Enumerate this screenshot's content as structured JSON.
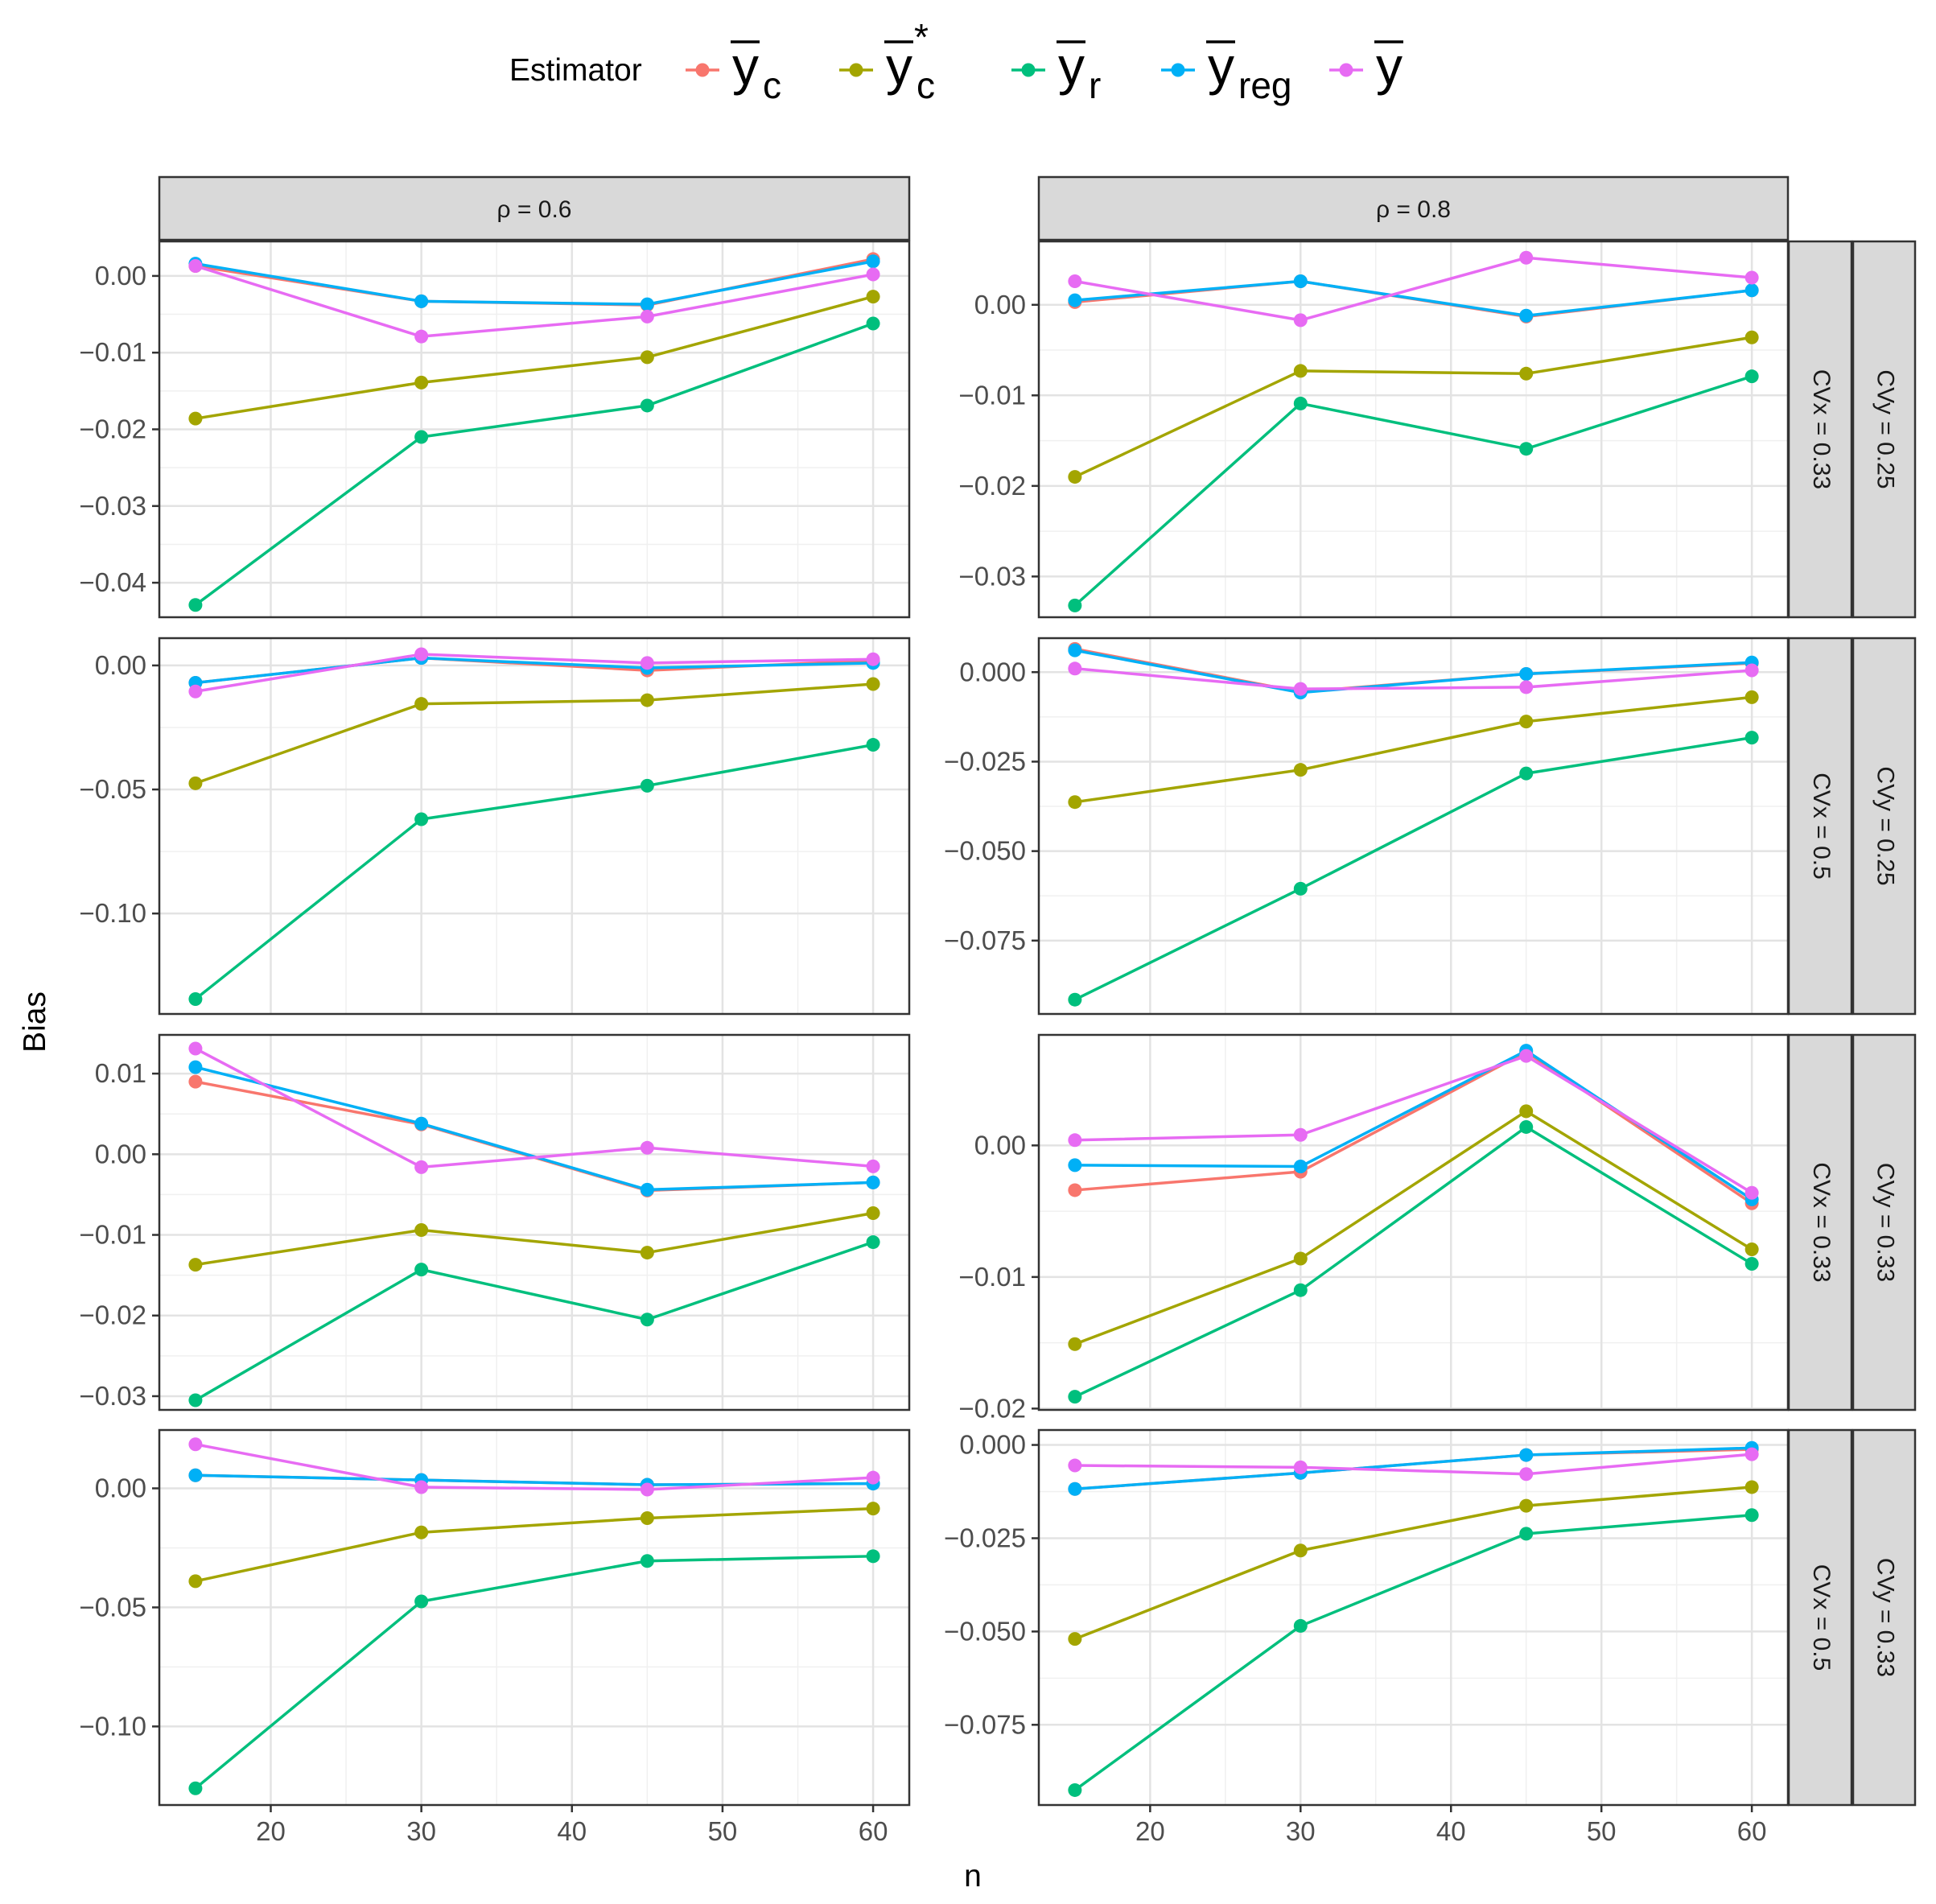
{
  "chart_data": {
    "type": "line",
    "xlabel": "n",
    "ylabel": "Bias",
    "x": [
      15,
      30,
      45,
      60
    ],
    "x_ticks": [
      20,
      30,
      40,
      50,
      60
    ],
    "xlim": [
      12.6,
      62.4
    ],
    "legend": {
      "title": "Estimator",
      "position": "top",
      "entries": [
        {
          "key": "yc",
          "symbol": "y",
          "sub": "c",
          "sup": "",
          "color": "#F8766D"
        },
        {
          "key": "yc_star",
          "symbol": "y",
          "sub": "c",
          "sup": "*",
          "color": "#A3A500"
        },
        {
          "key": "yr",
          "symbol": "y",
          "sub": "r",
          "sup": "",
          "color": "#00BF7D"
        },
        {
          "key": "yreg",
          "symbol": "y",
          "sub": "reg",
          "sup": "",
          "color": "#00B0F6"
        },
        {
          "key": "ybar",
          "symbol": "y",
          "sub": "",
          "sup": "",
          "color": "#E76BF3"
        }
      ]
    },
    "column_strips": [
      "ρ = 0.6",
      "ρ = 0.8"
    ],
    "row_strips": [
      {
        "cvx": "CVx = 0.33",
        "cvy": "CVy = 0.25"
      },
      {
        "cvx": "CVx = 0.5",
        "cvy": "CVy = 0.25"
      },
      {
        "cvx": "CVx = 0.33",
        "cvy": "CVy = 0.33"
      },
      {
        "cvx": "CVx = 0.5",
        "cvy": "CVy = 0.33"
      }
    ],
    "panels": [
      {
        "row": 0,
        "col": 0,
        "ylim": [
          -0.0445,
          0.0045
        ],
        "ticks": [
          0,
          -0.01,
          -0.02,
          -0.03,
          -0.04
        ],
        "tick_labels": [
          "0.00",
          "−0.01",
          "−0.02",
          "−0.03",
          "−0.04"
        ],
        "series": {
          "yc": [
            0.0013,
            -0.0033,
            -0.0038,
            0.0022
          ],
          "yc_star": [
            -0.0186,
            -0.0139,
            -0.0106,
            -0.0027
          ],
          "yr": [
            -0.0429,
            -0.021,
            -0.0169,
            -0.0062
          ],
          "yreg": [
            0.0016,
            -0.0033,
            -0.0037,
            0.0019
          ],
          "ybar": [
            0.0013,
            -0.0079,
            -0.0053,
            0.0002
          ]
        }
      },
      {
        "row": 0,
        "col": 1,
        "ylim": [
          -0.0345,
          0.007
        ],
        "ticks": [
          0,
          -0.01,
          -0.02,
          -0.03
        ],
        "tick_labels": [
          "0.00",
          "−0.01",
          "−0.02",
          "−0.03"
        ],
        "series": {
          "yc": [
            0.0003,
            0.0026,
            -0.0013,
            0.0016
          ],
          "yc_star": [
            -0.019,
            -0.0073,
            -0.0076,
            -0.0036
          ],
          "yr": [
            -0.0332,
            -0.0109,
            -0.0159,
            -0.0079
          ],
          "yreg": [
            0.0005,
            0.0026,
            -0.0012,
            0.0016
          ],
          "ybar": [
            0.0026,
            -0.0017,
            0.0052,
            0.003
          ]
        }
      },
      {
        "row": 1,
        "col": 0,
        "ylim": [
          -0.1405,
          0.011
        ],
        "ticks": [
          0,
          -0.05,
          -0.1
        ],
        "tick_labels": [
          "0.00",
          "−0.05",
          "−0.10"
        ],
        "series": {
          "yc": [
            -0.007,
            0.003,
            -0.002,
            0.002
          ],
          "yc_star": [
            -0.0475,
            -0.0155,
            -0.014,
            -0.0075
          ],
          "yr": [
            -0.1345,
            -0.062,
            -0.0485,
            -0.032
          ],
          "yreg": [
            -0.007,
            0.003,
            -0.001,
            0.001
          ],
          "ybar": [
            -0.0105,
            0.0045,
            0.001,
            0.0025
          ]
        }
      },
      {
        "row": 1,
        "col": 1,
        "ylim": [
          -0.0955,
          0.0095
        ],
        "ticks": [
          0,
          -0.025,
          -0.05,
          -0.075
        ],
        "tick_labels": [
          "0.000",
          "−0.025",
          "−0.050",
          "−0.075"
        ],
        "series": {
          "yc": [
            0.0065,
            -0.0055,
            -0.0005,
            0.0025
          ],
          "yc_star": [
            -0.0363,
            -0.0273,
            -0.0138,
            -0.007
          ],
          "yr": [
            -0.0915,
            -0.0605,
            -0.0283,
            -0.0183
          ],
          "yreg": [
            0.0061,
            -0.0057,
            -0.0005,
            0.0027
          ],
          "ybar": [
            0.001,
            -0.0047,
            -0.0042,
            0.0005
          ]
        }
      },
      {
        "row": 2,
        "col": 0,
        "ylim": [
          -0.0317,
          0.0148
        ],
        "ticks": [
          0.01,
          0,
          -0.01,
          -0.02,
          -0.03
        ],
        "tick_labels": [
          "0.01",
          "0.00",
          "−0.01",
          "−0.02",
          "−0.03"
        ],
        "series": {
          "yc": [
            0.009,
            0.0037,
            -0.0045,
            -0.0035
          ],
          "yc_star": [
            -0.0137,
            -0.0094,
            -0.0122,
            -0.0073
          ],
          "yr": [
            -0.0305,
            -0.0143,
            -0.0205,
            -0.0109
          ],
          "yreg": [
            0.0108,
            0.0038,
            -0.0044,
            -0.0035
          ],
          "ybar": [
            0.0131,
            -0.0016,
            0.0008,
            -0.0015
          ]
        }
      },
      {
        "row": 2,
        "col": 1,
        "ylim": [
          -0.0201,
          0.0084
        ],
        "ticks": [
          0,
          -0.01,
          -0.02
        ],
        "tick_labels": [
          "0.00",
          "−0.01",
          "−0.02"
        ],
        "series": {
          "yc": [
            -0.0034,
            -0.002,
            0.0071,
            -0.0044
          ],
          "yc_star": [
            -0.0151,
            -0.0086,
            0.0026,
            -0.0079
          ],
          "yr": [
            -0.0191,
            -0.011,
            0.0014,
            -0.009
          ],
          "yreg": [
            -0.0015,
            -0.0016,
            0.0072,
            -0.0041
          ],
          "ybar": [
            0.0004,
            0.0008,
            0.0068,
            -0.0036
          ]
        }
      },
      {
        "row": 3,
        "col": 0,
        "ylim": [
          -0.133,
          0.0245
        ],
        "ticks": [
          0,
          -0.05,
          -0.1
        ],
        "tick_labels": [
          "0.00",
          "−0.05",
          "−0.10"
        ],
        "series": {
          "yc": [
            0.0055,
            0.0035,
            0.0015,
            0.002
          ],
          "yc_star": [
            -0.039,
            -0.0185,
            -0.0125,
            -0.0085
          ],
          "yr": [
            -0.126,
            -0.0475,
            -0.0305,
            -0.0285
          ],
          "yreg": [
            0.0055,
            0.0035,
            0.0015,
            0.002
          ],
          "ybar": [
            0.0185,
            0.0005,
            -0.0005,
            0.0045
          ]
        }
      },
      {
        "row": 3,
        "col": 1,
        "ylim": [
          -0.0965,
          0.004
        ],
        "ticks": [
          0,
          -0.025,
          -0.05,
          -0.075
        ],
        "tick_labels": [
          "0.000",
          "−0.025",
          "−0.050",
          "−0.075"
        ],
        "series": {
          "yc": [
            -0.0118,
            -0.0075,
            -0.0027,
            -0.0012
          ],
          "yc_star": [
            -0.052,
            -0.0283,
            -0.0163,
            -0.0113
          ],
          "yr": [
            -0.0925,
            -0.0485,
            -0.0238,
            -0.0188
          ],
          "yreg": [
            -0.0118,
            -0.0075,
            -0.0027,
            -0.0008
          ],
          "ybar": [
            -0.0055,
            -0.006,
            -0.0078,
            -0.0025
          ]
        }
      }
    ]
  }
}
